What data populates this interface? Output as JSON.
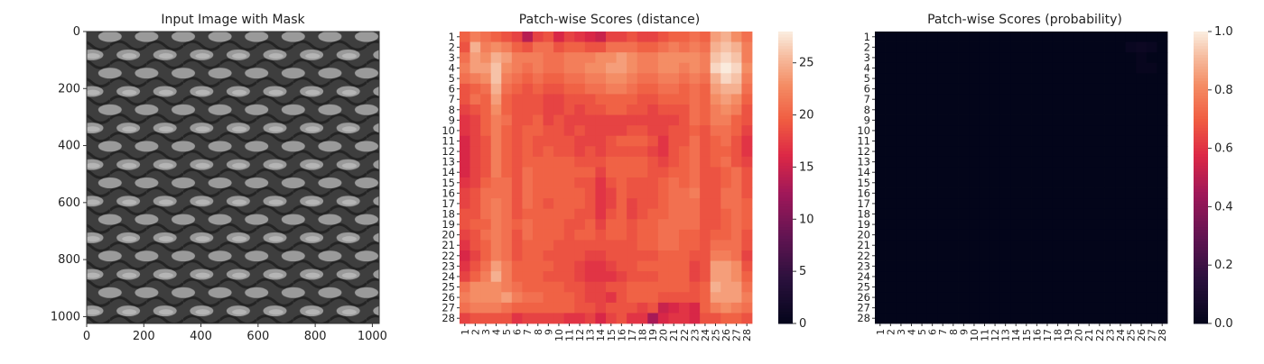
{
  "chart_data": [
    {
      "type": "image",
      "title": "Input Image with Mask",
      "x_ticks": [
        "0",
        "200",
        "400",
        "600",
        "800",
        "1000"
      ],
      "y_ticks": [
        "0",
        "200",
        "400",
        "600",
        "800",
        "1000"
      ],
      "xlim": [
        0,
        1024
      ],
      "ylim": [
        1024,
        0
      ],
      "texture": "metal grid / mesh, grayscale",
      "texture_rows": 16,
      "texture_cols": 8
    },
    {
      "type": "heatmap",
      "title": "Patch-wise Scores (distance)",
      "rows": [
        "1",
        "2",
        "3",
        "4",
        "5",
        "6",
        "7",
        "8",
        "9",
        "10",
        "11",
        "12",
        "13",
        "14",
        "15",
        "16",
        "17",
        "18",
        "19",
        "20",
        "21",
        "22",
        "23",
        "24",
        "25",
        "26",
        "27",
        "28"
      ],
      "cols": [
        "1",
        "2",
        "3",
        "4",
        "5",
        "6",
        "7",
        "8",
        "9",
        "10",
        "11",
        "12",
        "13",
        "14",
        "15",
        "16",
        "17",
        "18",
        "19",
        "20",
        "21",
        "22",
        "23",
        "24",
        "25",
        "26",
        "27",
        "28"
      ],
      "colorbar_ticks": [
        "0",
        "5",
        "10",
        "15",
        "20",
        "25"
      ],
      "vmin": 0,
      "vmax": 28,
      "colormap": "rocket",
      "values": [
        [
          20,
          22,
          21,
          20,
          19,
          18,
          14,
          18,
          19,
          16,
          18,
          17,
          16,
          15,
          18,
          18,
          19,
          18,
          18,
          19,
          20,
          20,
          21,
          20,
          24,
          25,
          23,
          21
        ],
        [
          19,
          25,
          22,
          23,
          22,
          20,
          19,
          21,
          21,
          19,
          20,
          20,
          19,
          19,
          21,
          21,
          21,
          20,
          20,
          21,
          22,
          21,
          22,
          21,
          25,
          26,
          25,
          22
        ],
        [
          21,
          24,
          23,
          25,
          24,
          22,
          22,
          22,
          21,
          21,
          22,
          22,
          22,
          23,
          23,
          24,
          23,
          22,
          22,
          23,
          23,
          23,
          23,
          22,
          26,
          27,
          26,
          22
        ],
        [
          22,
          24,
          24,
          26,
          23,
          22,
          21,
          22,
          21,
          21,
          22,
          22,
          23,
          23,
          24,
          24,
          23,
          22,
          22,
          23,
          23,
          22,
          23,
          22,
          27,
          28,
          27,
          23
        ],
        [
          21,
          22,
          23,
          26,
          22,
          21,
          20,
          21,
          20,
          20,
          21,
          21,
          22,
          22,
          23,
          23,
          22,
          21,
          21,
          22,
          22,
          21,
          22,
          21,
          25,
          27,
          26,
          22
        ],
        [
          19,
          20,
          21,
          25,
          21,
          20,
          19,
          20,
          19,
          19,
          20,
          20,
          21,
          21,
          22,
          22,
          21,
          20,
          20,
          21,
          21,
          20,
          21,
          20,
          24,
          25,
          25,
          21
        ],
        [
          19,
          21,
          20,
          24,
          20,
          19,
          19,
          19,
          18,
          18,
          19,
          19,
          19,
          20,
          20,
          20,
          20,
          19,
          19,
          20,
          20,
          20,
          21,
          20,
          23,
          24,
          23,
          20
        ],
        [
          18,
          19,
          20,
          23,
          20,
          19,
          19,
          19,
          18,
          18,
          19,
          18,
          19,
          19,
          20,
          20,
          19,
          19,
          18,
          19,
          19,
          19,
          21,
          20,
          22,
          23,
          22,
          19
        ],
        [
          17,
          18,
          20,
          22,
          21,
          19,
          19,
          20,
          18,
          19,
          18,
          18,
          18,
          18,
          18,
          18,
          18,
          18,
          18,
          18,
          18,
          19,
          21,
          20,
          22,
          22,
          20,
          19
        ],
        [
          17,
          18,
          20,
          22,
          20,
          19,
          20,
          20,
          19,
          19,
          18,
          19,
          18,
          18,
          18,
          18,
          19,
          19,
          18,
          18,
          19,
          19,
          20,
          19,
          21,
          21,
          20,
          18
        ],
        [
          16,
          18,
          19,
          22,
          20,
          19,
          20,
          19,
          19,
          19,
          19,
          18,
          18,
          18,
          19,
          20,
          20,
          20,
          19,
          17,
          19,
          19,
          21,
          19,
          20,
          21,
          19,
          17
        ],
        [
          16,
          18,
          19,
          22,
          20,
          19,
          20,
          19,
          20,
          19,
          19,
          18,
          19,
          18,
          19,
          19,
          19,
          19,
          18,
          17,
          19,
          20,
          21,
          19,
          20,
          20,
          19,
          17
        ],
        [
          16,
          18,
          19,
          22,
          20,
          19,
          20,
          20,
          20,
          20,
          20,
          19,
          19,
          19,
          20,
          20,
          20,
          20,
          19,
          18,
          19,
          20,
          21,
          19,
          20,
          21,
          19,
          18
        ],
        [
          16,
          18,
          19,
          22,
          20,
          19,
          21,
          20,
          20,
          20,
          20,
          20,
          20,
          18,
          20,
          20,
          20,
          20,
          19,
          19,
          20,
          20,
          21,
          19,
          19,
          20,
          21,
          19
        ],
        [
          17,
          18,
          20,
          21,
          21,
          19,
          21,
          20,
          20,
          20,
          20,
          19,
          19,
          17,
          19,
          20,
          19,
          19,
          19,
          20,
          21,
          20,
          21,
          19,
          19,
          20,
          21,
          19
        ],
        [
          18,
          19,
          21,
          21,
          21,
          19,
          21,
          20,
          20,
          20,
          20,
          20,
          19,
          17,
          18,
          20,
          19,
          19,
          19,
          20,
          21,
          21,
          22,
          19,
          19,
          21,
          21,
          19
        ],
        [
          18,
          19,
          21,
          22,
          21,
          19,
          21,
          20,
          19,
          20,
          20,
          20,
          19,
          17,
          18,
          20,
          18,
          19,
          19,
          20,
          21,
          21,
          21,
          19,
          19,
          21,
          21,
          20
        ],
        [
          19,
          19,
          21,
          22,
          21,
          19,
          20,
          20,
          20,
          20,
          20,
          19,
          19,
          17,
          19,
          20,
          18,
          19,
          20,
          20,
          21,
          21,
          21,
          19,
          19,
          20,
          21,
          20
        ],
        [
          19,
          20,
          20,
          22,
          21,
          20,
          21,
          20,
          20,
          20,
          19,
          19,
          20,
          18,
          20,
          20,
          19,
          20,
          20,
          21,
          21,
          21,
          21,
          19,
          19,
          20,
          21,
          20
        ],
        [
          18,
          19,
          21,
          22,
          21,
          19,
          21,
          20,
          20,
          20,
          19,
          20,
          20,
          19,
          20,
          20,
          19,
          20,
          20,
          21,
          21,
          20,
          20,
          19,
          20,
          20,
          21,
          19
        ],
        [
          17,
          19,
          20,
          22,
          21,
          19,
          20,
          20,
          20,
          19,
          19,
          19,
          19,
          19,
          19,
          19,
          19,
          20,
          20,
          21,
          21,
          20,
          20,
          19,
          21,
          21,
          21,
          19
        ],
        [
          16,
          18,
          20,
          22,
          21,
          19,
          20,
          20,
          19,
          19,
          19,
          19,
          18,
          18,
          19,
          19,
          19,
          19,
          19,
          20,
          20,
          20,
          19,
          19,
          22,
          22,
          21,
          18
        ],
        [
          17,
          19,
          21,
          24,
          22,
          20,
          20,
          20,
          20,
          19,
          19,
          18,
          17,
          17,
          18,
          19,
          19,
          20,
          20,
          20,
          20,
          20,
          18,
          19,
          24,
          24,
          23,
          19
        ],
        [
          18,
          20,
          22,
          25,
          22,
          20,
          20,
          20,
          19,
          19,
          19,
          18,
          17,
          17,
          17,
          18,
          19,
          19,
          19,
          20,
          20,
          20,
          18,
          19,
          24,
          24,
          23,
          20
        ],
        [
          21,
          23,
          23,
          23,
          22,
          21,
          20,
          20,
          20,
          20,
          19,
          19,
          18,
          18,
          19,
          19,
          20,
          20,
          20,
          20,
          20,
          20,
          19,
          20,
          25,
          24,
          24,
          21
        ],
        [
          22,
          23,
          23,
          23,
          24,
          22,
          21,
          21,
          20,
          20,
          20,
          19,
          18,
          18,
          17,
          19,
          20,
          20,
          20,
          19,
          19,
          19,
          19,
          20,
          24,
          24,
          24,
          22
        ],
        [
          21,
          22,
          22,
          22,
          21,
          20,
          20,
          20,
          20,
          20,
          20,
          19,
          19,
          18,
          19,
          19,
          19,
          18,
          19,
          15,
          16,
          17,
          16,
          20,
          22,
          23,
          22,
          21
        ],
        [
          18,
          19,
          19,
          19,
          19,
          17,
          18,
          18,
          18,
          18,
          17,
          17,
          18,
          16,
          18,
          19,
          17,
          17,
          13,
          16,
          17,
          17,
          16,
          19,
          19,
          20,
          20,
          19
        ]
      ]
    },
    {
      "type": "heatmap",
      "title": "Patch-wise Scores (probability)",
      "rows": [
        "1",
        "2",
        "3",
        "4",
        "5",
        "6",
        "7",
        "8",
        "9",
        "10",
        "11",
        "12",
        "13",
        "14",
        "15",
        "16",
        "17",
        "18",
        "19",
        "20",
        "21",
        "22",
        "23",
        "24",
        "25",
        "26",
        "27",
        "28"
      ],
      "cols": [
        "1",
        "2",
        "3",
        "4",
        "5",
        "6",
        "7",
        "8",
        "9",
        "10",
        "11",
        "12",
        "13",
        "14",
        "15",
        "16",
        "17",
        "18",
        "19",
        "20",
        "21",
        "22",
        "23",
        "24",
        "25",
        "26",
        "27",
        "28"
      ],
      "colorbar_ticks": [
        "0.0",
        "0.2",
        "0.4",
        "0.6",
        "0.8",
        "1.0"
      ],
      "vmin": 0,
      "vmax": 1,
      "colormap": "rocket",
      "fill_value": 0.0,
      "hot_cells": [
        [
          1,
          24,
          0.03
        ],
        [
          1,
          25,
          0.04
        ],
        [
          1,
          26,
          0.03
        ],
        [
          2,
          25,
          0.02
        ],
        [
          3,
          25,
          0.02
        ],
        [
          3,
          26,
          0.02
        ]
      ]
    }
  ]
}
